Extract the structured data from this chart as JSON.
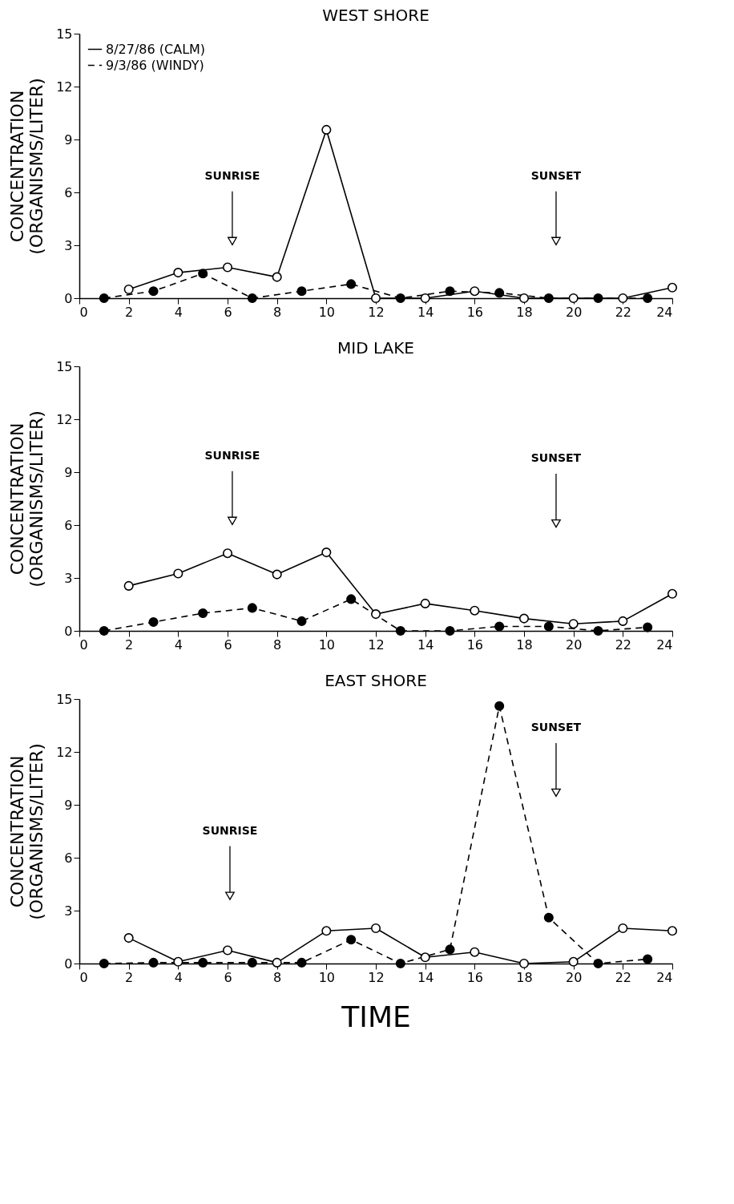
{
  "chart_data": [
    {
      "type": "line",
      "title": "WEST SHORE",
      "ylabel": "CONCENTRATION\n(ORGANISMS/LITER)",
      "xlim": [
        0,
        24
      ],
      "xticks": [
        0,
        2,
        4,
        6,
        8,
        10,
        12,
        14,
        16,
        18,
        20,
        22,
        24
      ],
      "ylim": [
        0,
        15
      ],
      "yticks": [
        0,
        3,
        6,
        9,
        12,
        15
      ],
      "legend": "top left",
      "marker": "circle",
      "grid": false,
      "annotations": [
        "SUNRISE",
        "SUNSET"
      ],
      "series": [
        {
          "name": "8/27/86 (CALM)",
          "color": "#000000",
          "line_style": "solid",
          "x": [
            2,
            4,
            6,
            8,
            10,
            12,
            14,
            16,
            18,
            20,
            22,
            24
          ],
          "values": [
            0.5,
            1.45,
            1.75,
            1.2,
            9.55,
            0,
            0,
            0.4,
            0,
            0,
            0,
            0.6
          ]
        },
        {
          "name": "9/3/86 (WINDY)",
          "color": "#000000",
          "line_style": "dashed",
          "x": [
            1,
            3,
            5,
            7,
            9,
            11,
            13,
            15,
            17,
            19,
            21,
            23
          ],
          "values": [
            0,
            0.4,
            1.4,
            0,
            0.4,
            0.8,
            0,
            0.4,
            0.3,
            0,
            0,
            0
          ]
        }
      ]
    },
    {
      "type": "line",
      "title": "MID LAKE",
      "ylabel": "CONCENTRATION\n(ORGANISMS/LITER)",
      "xlim": [
        0,
        24
      ],
      "xticks": [
        0,
        2,
        4,
        6,
        8,
        10,
        12,
        14,
        16,
        18,
        20,
        22,
        24
      ],
      "ylim": [
        0,
        15
      ],
      "yticks": [
        0,
        3,
        6,
        9,
        12,
        15
      ],
      "marker": "circle",
      "grid": false,
      "annotations": [
        "SUNRISE",
        "SUNSET"
      ],
      "series": [
        {
          "color": "#000000",
          "line_style": "solid",
          "x": [
            2,
            4,
            6,
            8,
            10,
            12,
            14,
            16,
            18,
            20,
            22,
            24
          ],
          "values": [
            2.55,
            3.25,
            4.4,
            3.2,
            4.45,
            0.95,
            1.55,
            1.15,
            0.7,
            0.4,
            0.55,
            2.1
          ]
        },
        {
          "color": "#000000",
          "line_style": "dashed",
          "x": [
            1,
            3,
            5,
            7,
            9,
            11,
            13,
            15,
            17,
            19,
            21,
            23
          ],
          "values": [
            0,
            0.5,
            1.0,
            1.3,
            0.55,
            1.8,
            0,
            0,
            0.25,
            0.25,
            0,
            0.2
          ]
        }
      ]
    },
    {
      "type": "line",
      "title": "EAST SHORE",
      "xlabel": "TIME",
      "ylabel": "CONCENTRATION\n(ORGANISMS/LITER)",
      "xlim": [
        0,
        24
      ],
      "xticks": [
        0,
        2,
        4,
        6,
        8,
        10,
        12,
        14,
        16,
        18,
        20,
        22,
        24
      ],
      "ylim": [
        0,
        15
      ],
      "yticks": [
        0,
        3,
        6,
        9,
        12,
        15
      ],
      "marker": "circle",
      "grid": false,
      "annotations": [
        "SUNRISE",
        "SUNSET"
      ],
      "series": [
        {
          "color": "#000000",
          "line_style": "solid",
          "x": [
            2,
            4,
            6,
            8,
            10,
            12,
            14,
            16,
            18,
            20,
            22,
            24
          ],
          "values": [
            1.45,
            0.1,
            0.75,
            0.05,
            1.85,
            2.0,
            0.35,
            0.65,
            0,
            0.1,
            2.0,
            1.85
          ]
        },
        {
          "color": "#000000",
          "line_style": "dashed",
          "x": [
            1,
            3,
            5,
            7,
            9,
            11,
            13,
            15,
            17,
            19,
            21,
            23
          ],
          "values": [
            0,
            0.05,
            0.05,
            0.05,
            0.05,
            1.35,
            0,
            0.8,
            14.6,
            2.6,
            0,
            0.25
          ]
        }
      ]
    }
  ]
}
